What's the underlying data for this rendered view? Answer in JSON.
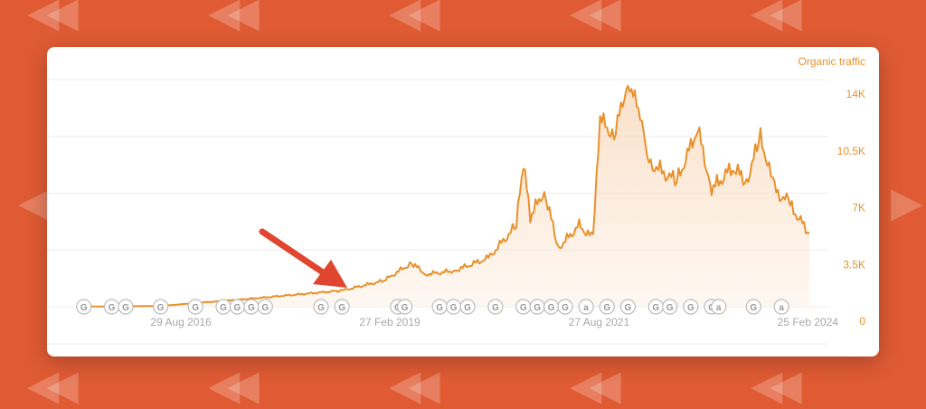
{
  "chart_data": {
    "type": "area",
    "title": "Organic traffic",
    "y_ticks": [
      "14K",
      "10.5K",
      "7K",
      "3.5K",
      "0"
    ],
    "y_tick_values": [
      14000,
      10500,
      7000,
      3500,
      0
    ],
    "ylim": [
      0,
      14000
    ],
    "x_ticks": [
      "29 Aug 2016",
      "27 Feb 2019",
      "27 Aug 2021",
      "25 Feb 2024"
    ],
    "x_tick_dates": [
      "2016-08-29",
      "2019-02-27",
      "2021-08-27",
      "2024-02-25"
    ],
    "xlim": [
      "2015-06",
      "2024-03"
    ],
    "grid": true,
    "line_color": "#e8912c",
    "points": [
      {
        "date": "2015-06",
        "value": 0
      },
      {
        "date": "2016-06",
        "value": 50
      },
      {
        "date": "2017-07",
        "value": 500
      },
      {
        "date": "2018-08",
        "value": 1000
      },
      {
        "date": "2019-02",
        "value": 1600
      },
      {
        "date": "2019-06",
        "value": 2700
      },
      {
        "date": "2019-08",
        "value": 2000
      },
      {
        "date": "2019-12",
        "value": 2200
      },
      {
        "date": "2020-05",
        "value": 3000
      },
      {
        "date": "2020-09",
        "value": 5000
      },
      {
        "date": "2020-10",
        "value": 8900
      },
      {
        "date": "2020-11",
        "value": 5500
      },
      {
        "date": "2021-01",
        "value": 7200
      },
      {
        "date": "2021-03",
        "value": 3600
      },
      {
        "date": "2021-06",
        "value": 5000
      },
      {
        "date": "2021-08",
        "value": 4200
      },
      {
        "date": "2021-09",
        "value": 11600
      },
      {
        "date": "2021-11",
        "value": 10500
      },
      {
        "date": "2022-01",
        "value": 13900
      },
      {
        "date": "2022-03",
        "value": 11600
      },
      {
        "date": "2022-04",
        "value": 8900
      },
      {
        "date": "2022-08",
        "value": 7700
      },
      {
        "date": "2022-11",
        "value": 11000
      },
      {
        "date": "2023-01",
        "value": 7200
      },
      {
        "date": "2023-04",
        "value": 8600
      },
      {
        "date": "2023-06",
        "value": 7700
      },
      {
        "date": "2023-08",
        "value": 10500
      },
      {
        "date": "2023-10",
        "value": 7200
      },
      {
        "date": "2023-12",
        "value": 6400
      },
      {
        "date": "2024-03",
        "value": 4500
      }
    ],
    "markers": [
      {
        "date": "2015-07",
        "label": "G"
      },
      {
        "date": "2015-11",
        "label": "G"
      },
      {
        "date": "2016-01",
        "label": "G"
      },
      {
        "date": "2016-06",
        "label": "G"
      },
      {
        "date": "2016-11",
        "label": "G"
      },
      {
        "date": "2017-03",
        "label": "G"
      },
      {
        "date": "2017-05",
        "label": "G"
      },
      {
        "date": "2017-07",
        "label": "G"
      },
      {
        "date": "2017-09",
        "label": "G"
      },
      {
        "date": "2018-05",
        "label": "G"
      },
      {
        "date": "2018-08",
        "label": "G"
      },
      {
        "date": "2019-04",
        "label": "G"
      },
      {
        "date": "2019-05",
        "label": "G"
      },
      {
        "date": "2019-10",
        "label": "G"
      },
      {
        "date": "2019-12",
        "label": "G"
      },
      {
        "date": "2020-02",
        "label": "G"
      },
      {
        "date": "2020-06",
        "label": "G"
      },
      {
        "date": "2020-10",
        "label": "G"
      },
      {
        "date": "2020-12",
        "label": "G"
      },
      {
        "date": "2021-02",
        "label": "G"
      },
      {
        "date": "2021-04",
        "label": "G"
      },
      {
        "date": "2021-07",
        "label": "a"
      },
      {
        "date": "2021-10",
        "label": "G"
      },
      {
        "date": "2022-01",
        "label": "G"
      },
      {
        "date": "2022-05",
        "label": "G"
      },
      {
        "date": "2022-07",
        "label": "G"
      },
      {
        "date": "2022-10",
        "label": "G"
      },
      {
        "date": "2023-01",
        "label": "G"
      },
      {
        "date": "2023-02",
        "label": "a"
      },
      {
        "date": "2023-07",
        "label": "G"
      },
      {
        "date": "2023-11",
        "label": "a"
      }
    ]
  },
  "annotation": {
    "type": "arrow",
    "color": "#e0452f"
  }
}
